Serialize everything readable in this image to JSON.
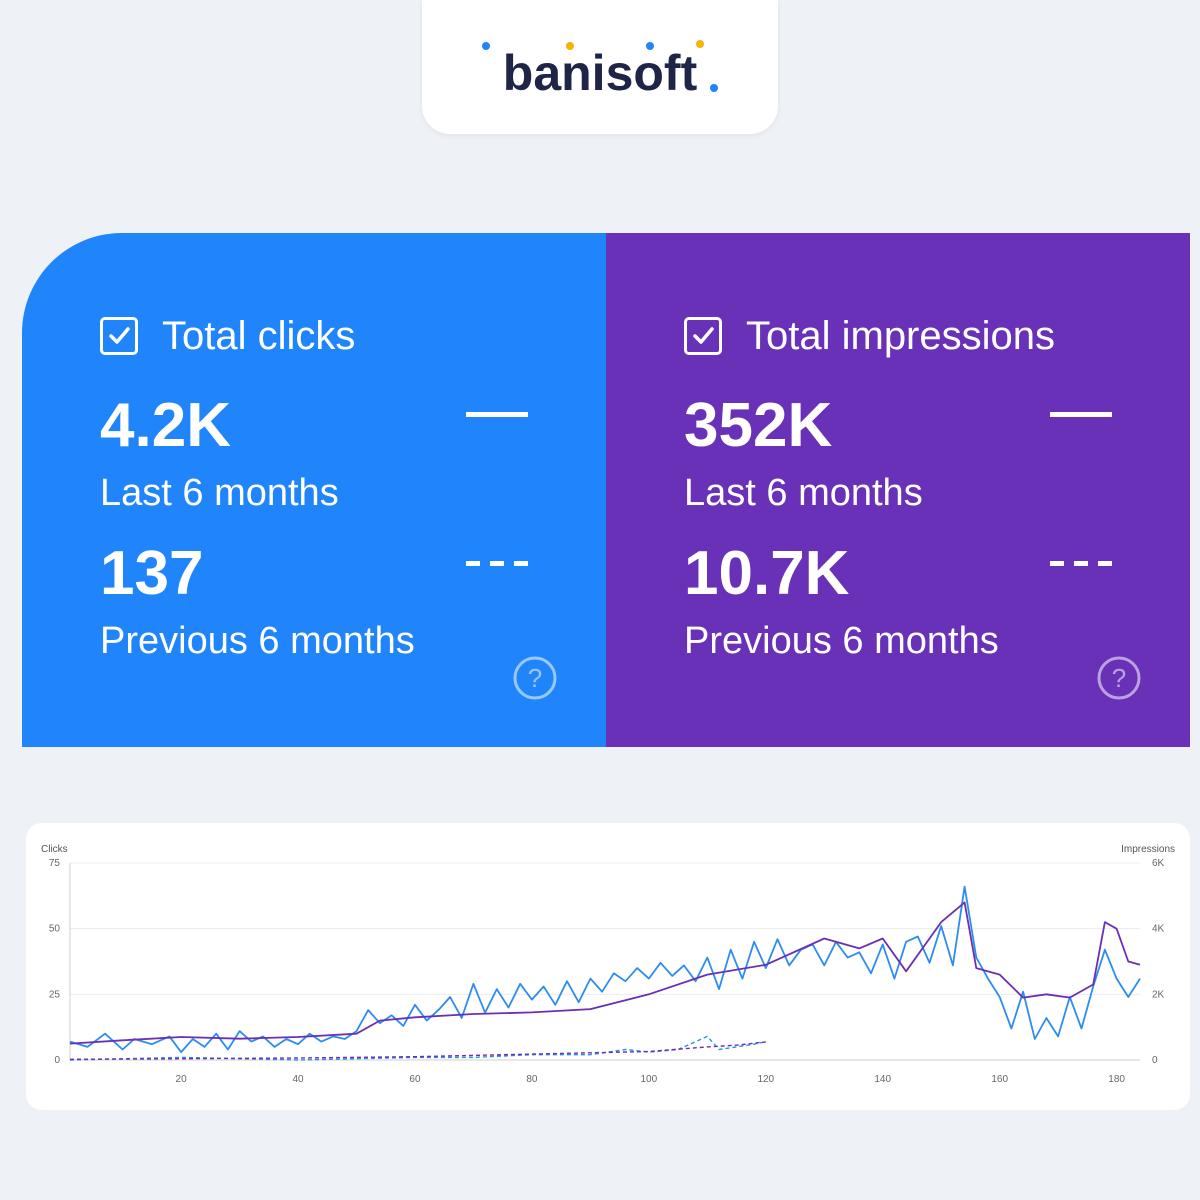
{
  "brand": {
    "name": "banisoft",
    "dot_colors": [
      "#2084fa",
      "#f5b400",
      "#6831b8"
    ]
  },
  "clicks_card": {
    "title": "Total clicks",
    "checked": true,
    "current_value": "4.2K",
    "current_label": "Last 6 months",
    "previous_value": "137",
    "previous_label": "Previous 6 months",
    "color": "#2084fa"
  },
  "impressions_card": {
    "title": "Total impressions",
    "checked": true,
    "current_value": "352K",
    "current_label": "Last 6 months",
    "previous_value": "10.7K",
    "previous_label": "Previous 6 months",
    "color": "#6831b8"
  },
  "chart_data": {
    "type": "line",
    "ylabel_left": "Clicks",
    "ylabel_right": "Impressions",
    "y_left_ticks": [
      "0",
      "25",
      "50",
      "75"
    ],
    "y_right_ticks": [
      "0",
      "2K",
      "4K",
      "6K"
    ],
    "ylim_left": [
      0,
      75
    ],
    "ylim_right": [
      0,
      6000
    ],
    "x_ticks": [
      "20",
      "40",
      "60",
      "80",
      "100",
      "120",
      "140",
      "160",
      "180"
    ],
    "xlim": [
      1,
      184
    ],
    "series": [
      {
        "name": "Clicks (last 6 months)",
        "axis": "left",
        "style": "solid",
        "color": "#2d8cf0",
        "x": [
          1,
          4,
          7,
          10,
          12,
          15,
          18,
          20,
          22,
          24,
          26,
          28,
          30,
          32,
          34,
          36,
          38,
          40,
          42,
          44,
          46,
          48,
          50,
          52,
          54,
          56,
          58,
          60,
          62,
          64,
          66,
          68,
          70,
          72,
          74,
          76,
          78,
          80,
          82,
          84,
          86,
          88,
          90,
          92,
          94,
          96,
          98,
          100,
          102,
          104,
          106,
          108,
          110,
          112,
          114,
          116,
          118,
          120,
          122,
          124,
          126,
          128,
          130,
          132,
          134,
          136,
          138,
          140,
          142,
          144,
          146,
          148,
          150,
          152,
          154,
          156,
          158,
          160,
          162,
          164,
          166,
          168,
          170,
          172,
          174,
          176,
          178,
          180,
          182,
          184
        ],
        "y": [
          7,
          5,
          10,
          4,
          8,
          6,
          9,
          3,
          8,
          5,
          10,
          4,
          11,
          7,
          9,
          5,
          8,
          6,
          10,
          7,
          9,
          8,
          11,
          19,
          14,
          17,
          13,
          21,
          15,
          19,
          24,
          16,
          29,
          18,
          27,
          20,
          29,
          23,
          28,
          21,
          30,
          22,
          31,
          26,
          33,
          30,
          35,
          31,
          37,
          32,
          36,
          30,
          39,
          27,
          42,
          31,
          45,
          35,
          46,
          36,
          42,
          44,
          36,
          45,
          39,
          41,
          33,
          44,
          31,
          45,
          47,
          37,
          51,
          36,
          66,
          39,
          31,
          24,
          12,
          26,
          8,
          16,
          9,
          24,
          12,
          28,
          42,
          31,
          24,
          31
        ]
      },
      {
        "name": "Impressions (last 6 months)",
        "axis": "right",
        "style": "solid",
        "color": "#6a2fb5",
        "x": [
          1,
          10,
          20,
          30,
          40,
          50,
          54,
          60,
          70,
          80,
          90,
          100,
          110,
          120,
          130,
          136,
          140,
          144,
          150,
          154,
          156,
          160,
          164,
          168,
          172,
          176,
          178,
          180,
          182,
          184
        ],
        "y": [
          500,
          600,
          700,
          650,
          700,
          800,
          1200,
          1300,
          1400,
          1450,
          1550,
          2000,
          2600,
          2900,
          3700,
          3400,
          3700,
          2700,
          4200,
          4800,
          2800,
          2600,
          1900,
          2000,
          1900,
          2300,
          4200,
          4000,
          3000,
          2900
        ]
      },
      {
        "name": "Clicks (previous 6 months)",
        "axis": "left",
        "style": "dashed",
        "color": "#2d8cf0",
        "x": [
          1,
          20,
          40,
          60,
          70,
          80,
          90,
          96,
          100,
          105,
          110,
          112,
          115,
          118,
          120
        ],
        "y": [
          0,
          1,
          0,
          1,
          1,
          2,
          2,
          4,
          3,
          4,
          9,
          4,
          5,
          6,
          7
        ]
      },
      {
        "name": "Impressions (previous 6 months)",
        "axis": "right",
        "style": "dashed",
        "color": "#6a2fb5",
        "x": [
          1,
          20,
          40,
          60,
          80,
          100,
          110,
          115,
          120
        ],
        "y": [
          20,
          40,
          60,
          100,
          180,
          260,
          400,
          450,
          550
        ]
      }
    ]
  }
}
